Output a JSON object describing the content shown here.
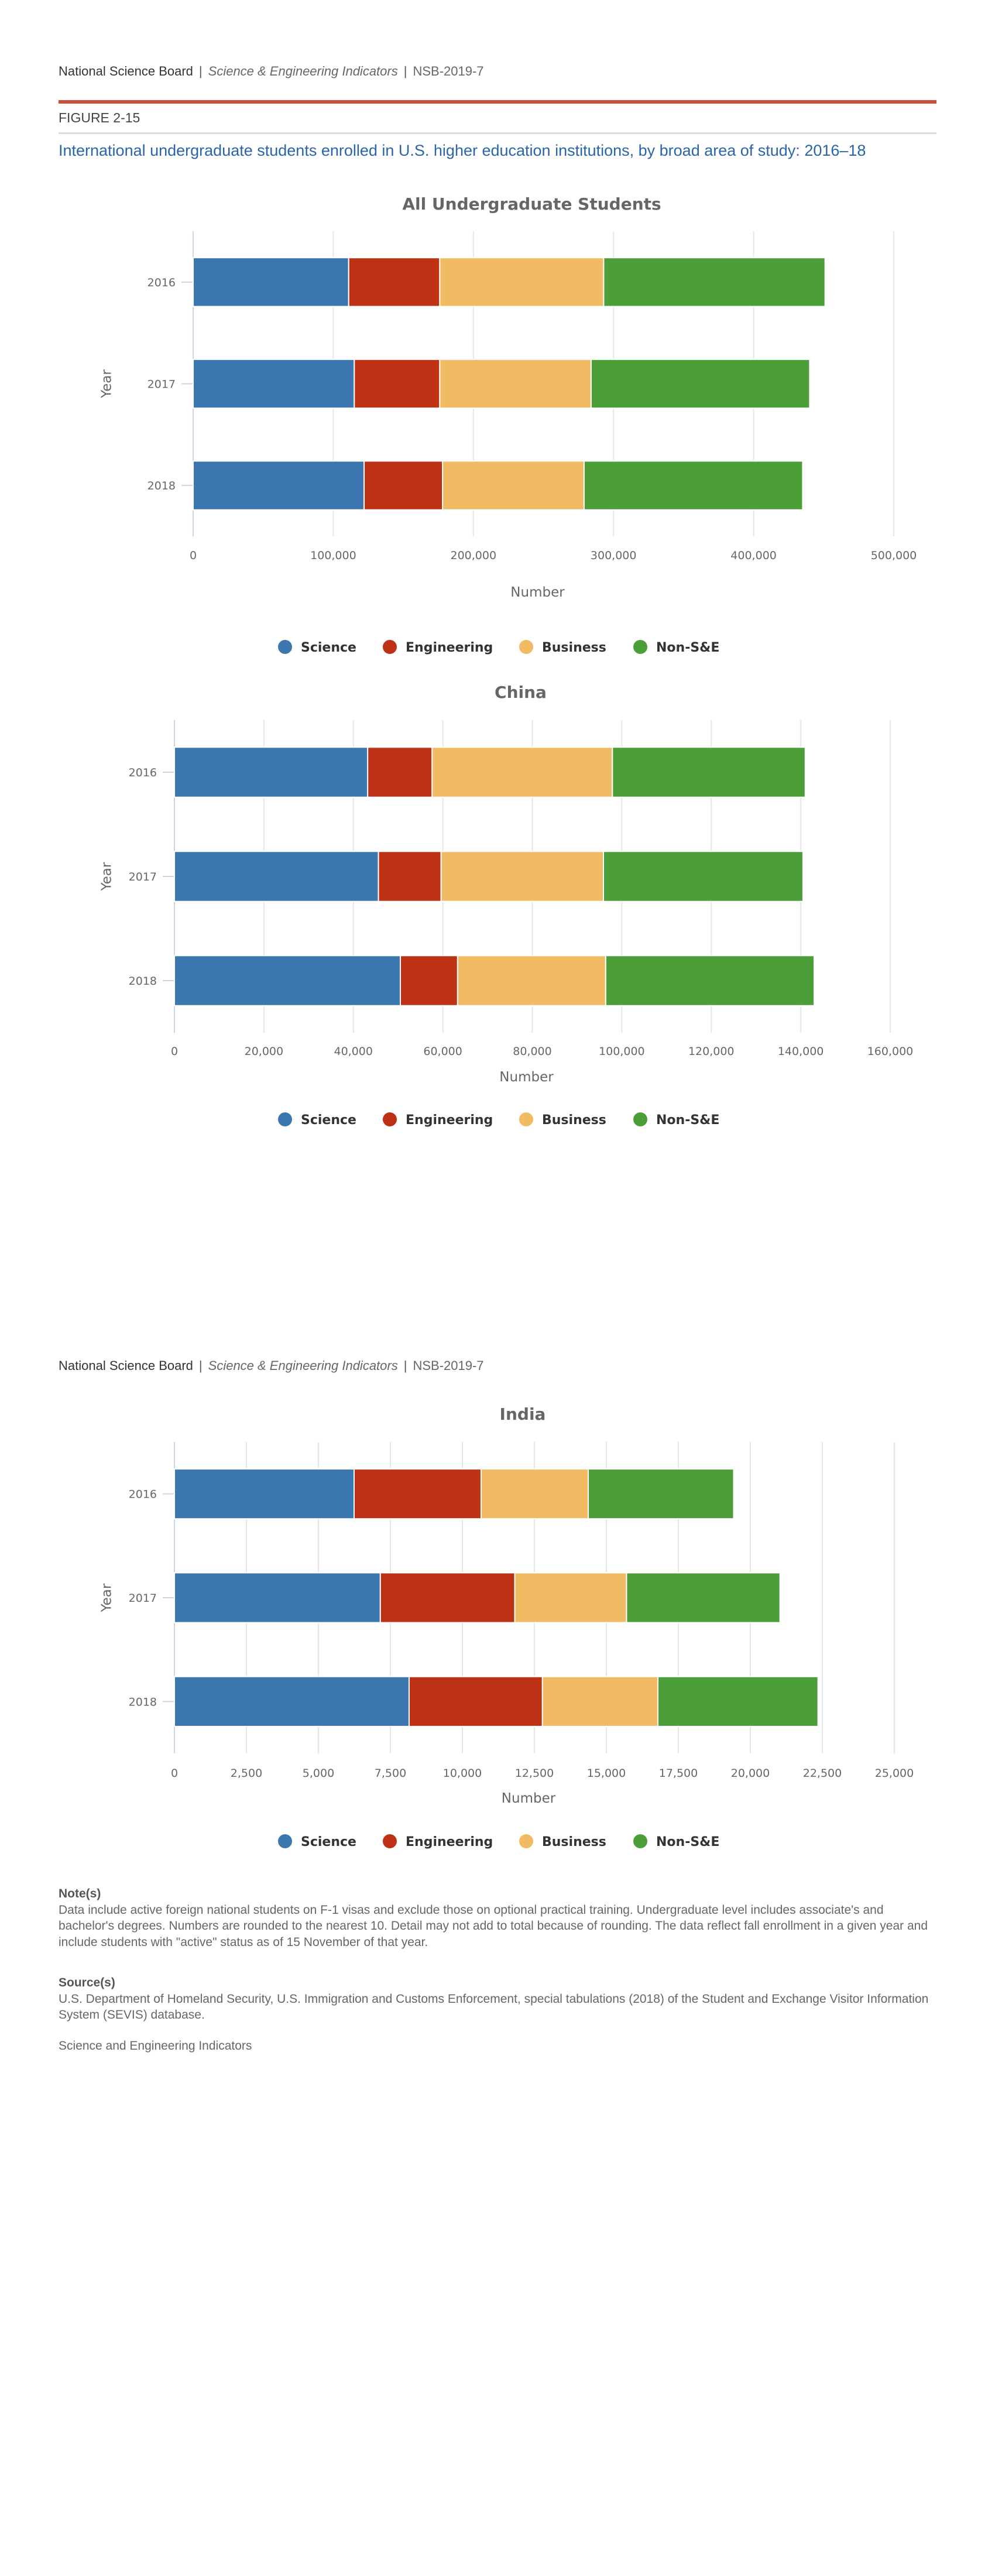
{
  "header": {
    "org": "National Science Board",
    "separator": "|",
    "publication": "Science & Engineering Indicators",
    "report_number": "NSB-2019-7"
  },
  "figure": {
    "label": "FIGURE 2-15",
    "title": "International undergraduate students enrolled in U.S. higher education institutions, by broad area of study: 2016–18"
  },
  "colors": {
    "Science": "#3b76ae",
    "Engineering": "#bd3115",
    "Business": "#f0bb63",
    "Non-S&E": "#4c9e39",
    "accent_bar": "#c9503a",
    "title_blue": "#2a64ad"
  },
  "chart_data": [
    {
      "type": "bar",
      "orientation": "horizontal",
      "stacked": true,
      "title": "All Undergraduate Students",
      "xlabel": "Number",
      "ylabel": "Year",
      "categories": [
        "2016",
        "2017",
        "2018"
      ],
      "xlim": [
        0,
        500000
      ],
      "xticks": [
        "0",
        "100,000",
        "200,000",
        "300,000",
        "400,000",
        "500,000"
      ],
      "grid": true,
      "legend_position": "bottom",
      "series": [
        {
          "name": "Science",
          "values": [
            111000,
            115000,
            122000
          ]
        },
        {
          "name": "Engineering",
          "values": [
            65000,
            61000,
            56000
          ]
        },
        {
          "name": "Business",
          "values": [
            117000,
            108000,
            101000
          ]
        },
        {
          "name": "Non-S&E",
          "values": [
            158000,
            156000,
            156000
          ]
        }
      ]
    },
    {
      "type": "bar",
      "orientation": "horizontal",
      "stacked": true,
      "title": "China",
      "xlabel": "Number",
      "ylabel": "Year",
      "categories": [
        "2016",
        "2017",
        "2018"
      ],
      "xlim": [
        0,
        160000
      ],
      "xticks": [
        "0",
        "20,000",
        "40,000",
        "60,000",
        "80,000",
        "100,000",
        "120,000",
        "140,000",
        "160,000"
      ],
      "grid": true,
      "legend_position": "bottom",
      "series": [
        {
          "name": "Science",
          "values": [
            43200,
            45600,
            50500
          ]
        },
        {
          "name": "Engineering",
          "values": [
            14400,
            14000,
            12800
          ]
        },
        {
          "name": "Business",
          "values": [
            40300,
            36300,
            33100
          ]
        },
        {
          "name": "Non-S&E",
          "values": [
            43100,
            44600,
            46600
          ]
        }
      ]
    },
    {
      "type": "bar",
      "orientation": "horizontal",
      "stacked": true,
      "title": "India",
      "xlabel": "Number",
      "ylabel": "Year",
      "categories": [
        "2016",
        "2017",
        "2018"
      ],
      "xlim": [
        0,
        25000
      ],
      "xticks": [
        "0",
        "2,500",
        "5,000",
        "7,500",
        "10,000",
        "12,500",
        "15,000",
        "17,500",
        "20,000",
        "22,500",
        "25,000"
      ],
      "grid": true,
      "legend_position": "bottom",
      "series": [
        {
          "name": "Science",
          "values": [
            6240,
            7150,
            8150
          ]
        },
        {
          "name": "Engineering",
          "values": [
            4410,
            4670,
            4630
          ]
        },
        {
          "name": "Business",
          "values": [
            3720,
            3880,
            4010
          ]
        },
        {
          "name": "Non-S&E",
          "values": [
            5050,
            5330,
            5560
          ]
        }
      ]
    }
  ],
  "notes": {
    "heading": "Note(s)",
    "text": "Data include active foreign national students on F-1 visas and exclude those on optional practical training. Undergraduate level includes associate's and bachelor's degrees. Numbers are rounded to the nearest 10. Detail may not add to total because of rounding. The data reflect fall enrollment in a given year and include students with \"active\" status as of 15 November of that year."
  },
  "sources": {
    "heading": "Source(s)",
    "text": "U.S. Department of Homeland Security, U.S. Immigration and Customs Enforcement, special tabulations (2018) of the Student and Exchange Visitor Information System (SEVIS) database.",
    "footer": "Science and Engineering Indicators"
  }
}
